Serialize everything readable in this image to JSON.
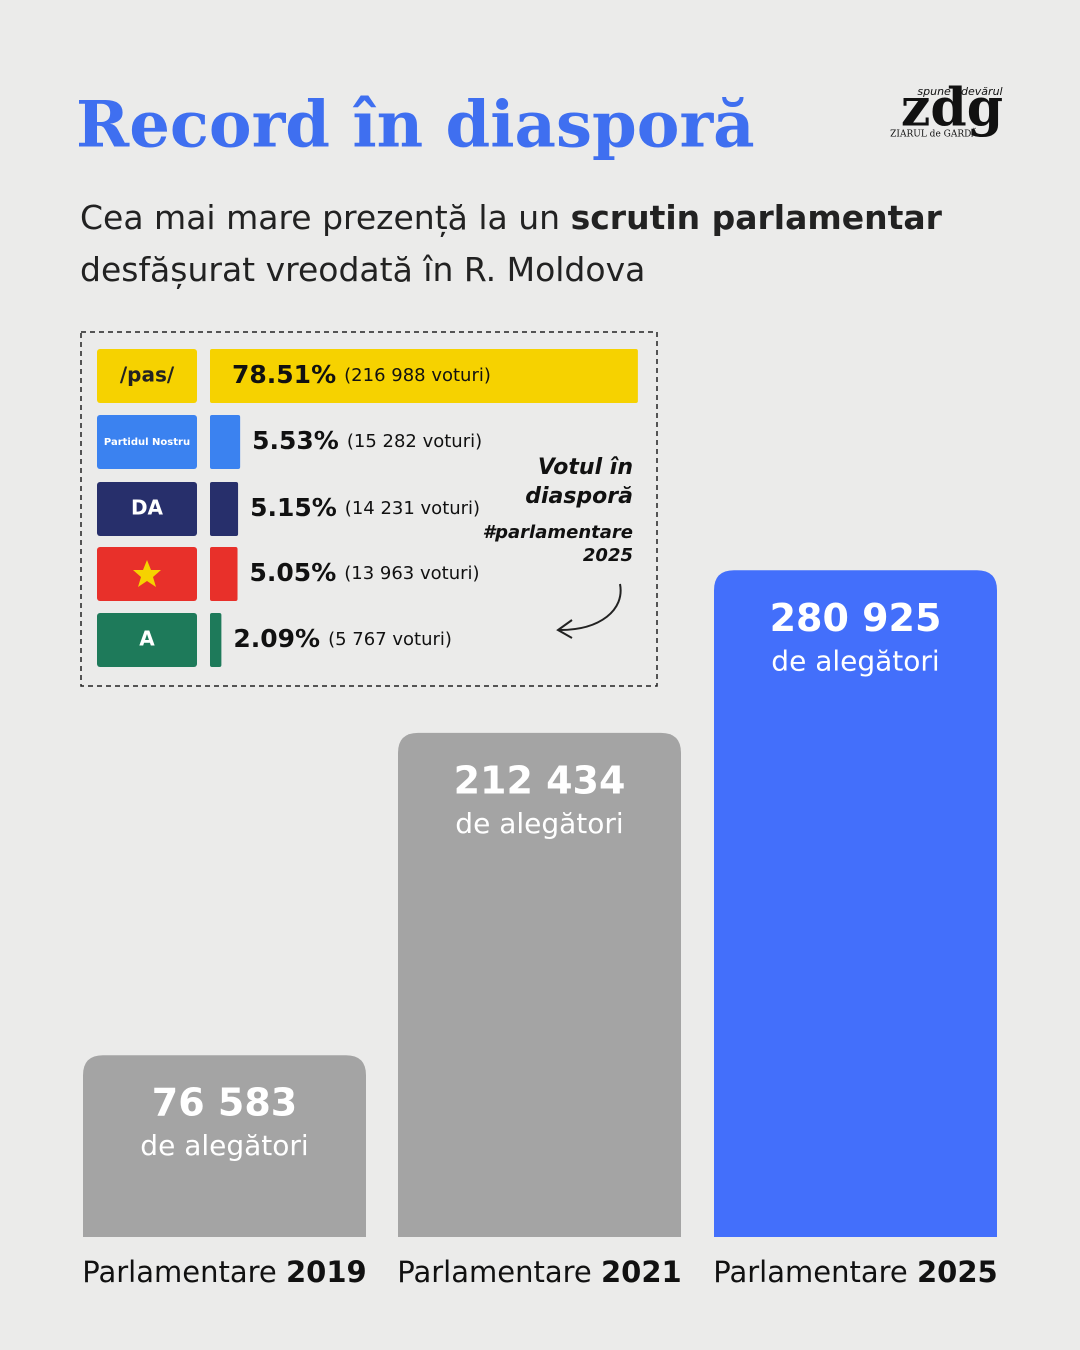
{
  "header": {
    "title": "Record în diasporă",
    "subtitle": [
      "Cea mai mare prezență la un",
      "scrutin parlamentar",
      "desfășurat vreodată în R. Moldova"
    ],
    "logo": {
      "name": "zdg",
      "tagline": "spune adevărul",
      "publication": "ZIARUL de GARDĂ"
    }
  },
  "chart_data": [
    {
      "type": "bar",
      "orientation": "vertical",
      "category_prefix": "Parlamentare",
      "categories": [
        "2019",
        "2021",
        "2025"
      ],
      "values": [
        76583,
        212434,
        280925
      ],
      "value_labels": [
        "76 583",
        "212 434",
        "280 925"
      ],
      "value_unit": "de alegători",
      "colors": [
        "#a4a4a4",
        "#a4a4a4",
        "#436ffb"
      ],
      "ylim": [
        0,
        300000
      ]
    },
    {
      "type": "hbar",
      "categories": [
        "/pas/",
        "Partidul Nostru",
        "DA",
        null,
        "A"
      ],
      "values": [
        78.51,
        5.53,
        5.15,
        5.05,
        2.09
      ],
      "value_labels": [
        "78.51%",
        "5.53%",
        "5.15%",
        "5.05%",
        "2.09%"
      ],
      "votes": [
        216988,
        15282,
        14231,
        13963,
        5767
      ],
      "vote_labels": [
        "(216 988 voturi)",
        "(15 282 voturi)",
        "(14 231 voturi)",
        "(13 963 voturi)",
        "(5 767 voturi)"
      ],
      "colors": [
        "#f6d200",
        "#3b82f0",
        "#272f6b",
        "#e8302a",
        "#1e7a5a"
      ],
      "xlim": [
        0,
        100
      ],
      "annotation": [
        "Votul în",
        "diasporă"
      ],
      "hashtag": [
        "#parlamentare",
        "2025"
      ]
    }
  ]
}
